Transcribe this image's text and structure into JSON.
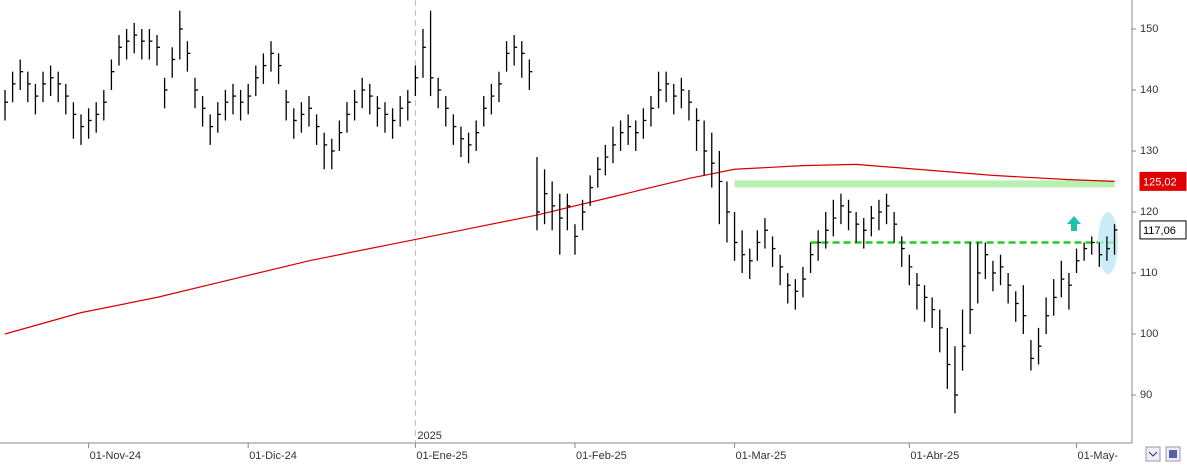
{
  "chart_data": {
    "type": "ohlc",
    "x": [
      0,
      1,
      2,
      3,
      4,
      5,
      6,
      7,
      8,
      9,
      10,
      11,
      12,
      13,
      14,
      15,
      16,
      17,
      18,
      19,
      20,
      21,
      22,
      23,
      24,
      25,
      26,
      27,
      28,
      29,
      30,
      31,
      32,
      33,
      34,
      35,
      36,
      37,
      38,
      39,
      40,
      41,
      42,
      43,
      44,
      45,
      46,
      47,
      48,
      49,
      50,
      51,
      52,
      53,
      54,
      55,
      56,
      57,
      58,
      59,
      60,
      61,
      62,
      63,
      64,
      65,
      66,
      67,
      68,
      69,
      70,
      71,
      72,
      73,
      74,
      75,
      76,
      77,
      78,
      79,
      80,
      81,
      82,
      83,
      84,
      85,
      86,
      87,
      88,
      89,
      90,
      91,
      92,
      93,
      94,
      95,
      96,
      97,
      98,
      99,
      100,
      101,
      102,
      103,
      104,
      105,
      106,
      107,
      108,
      109,
      110,
      111,
      112,
      113,
      114,
      115,
      116,
      117,
      118,
      119,
      120,
      121,
      122,
      123,
      124,
      125,
      126,
      127,
      128,
      129,
      130,
      131,
      132,
      133,
      134,
      135,
      136,
      137,
      138,
      139,
      140,
      141,
      142,
      143,
      144,
      145,
      146
    ],
    "series": [
      {
        "color": "#000000",
        "high": [
          140,
          143,
          145,
          143,
          141,
          143,
          144,
          143,
          141,
          138,
          136,
          137,
          138,
          140,
          145,
          149,
          150,
          151,
          150,
          150,
          149,
          142,
          147,
          153,
          148,
          142,
          139,
          136,
          138,
          140,
          141,
          140,
          141,
          144,
          146,
          148,
          146,
          140,
          137,
          138,
          139,
          136,
          133,
          132,
          135,
          138,
          140,
          142,
          141,
          139,
          138,
          137,
          139,
          140,
          144,
          150,
          153,
          142,
          139,
          136,
          134,
          133,
          135,
          139,
          141,
          143,
          148,
          149,
          148,
          145,
          129,
          127,
          125,
          123,
          123,
          118,
          122,
          126,
          129,
          131,
          134,
          135,
          136,
          135,
          137,
          139,
          143,
          143,
          141,
          142,
          140,
          137,
          135,
          133,
          130,
          125,
          120,
          117,
          114,
          117,
          119,
          116,
          113,
          110,
          109,
          111,
          115,
          117,
          120,
          122,
          123,
          122,
          120,
          119,
          121,
          122,
          123,
          120,
          116,
          113,
          110,
          108,
          106,
          104,
          101,
          98,
          104,
          115,
          115,
          115,
          112,
          113,
          110,
          107,
          108,
          99,
          101,
          106,
          109,
          112,
          110,
          114,
          115,
          116,
          115,
          116,
          118
        ],
        "low": [
          135,
          138,
          140,
          138,
          136,
          138,
          139,
          138,
          136,
          132,
          131,
          132,
          133,
          135,
          140,
          144,
          145,
          146,
          145,
          145,
          144,
          137,
          142,
          145,
          143,
          137,
          134,
          131,
          133,
          135,
          136,
          135,
          136,
          139,
          141,
          143,
          141,
          135,
          132,
          133,
          134,
          131,
          127,
          127,
          130,
          133,
          135,
          137,
          136,
          134,
          133,
          132,
          134,
          135,
          139,
          142,
          139,
          137,
          134,
          131,
          129,
          128,
          130,
          134,
          136,
          138,
          143,
          144,
          142,
          140,
          117,
          118,
          117,
          113,
          117,
          113,
          117,
          121,
          124,
          126,
          128,
          130,
          131,
          130,
          132,
          134,
          137,
          138,
          136,
          137,
          135,
          130,
          126,
          124,
          118,
          115,
          112,
          110,
          109,
          112,
          114,
          111,
          108,
          105,
          104,
          106,
          110,
          112,
          114,
          116,
          118,
          117,
          115,
          114,
          116,
          117,
          118,
          115,
          111,
          108,
          104,
          102,
          101,
          97,
          91,
          87,
          94,
          100,
          105,
          109,
          107,
          108,
          105,
          102,
          100,
          94,
          95,
          100,
          103,
          106,
          104,
          110,
          112,
          113,
          111,
          112,
          113
        ],
        "close": [
          138,
          141,
          143,
          141,
          139,
          141,
          142,
          141,
          139,
          136,
          134,
          135,
          136,
          138,
          143,
          147,
          148,
          149,
          148,
          148,
          147,
          140,
          145,
          150,
          146,
          140,
          137,
          134,
          136,
          138,
          139,
          138,
          139,
          142,
          144,
          146,
          144,
          138,
          135,
          136,
          137,
          134,
          131,
          130,
          133,
          136,
          138,
          140,
          139,
          137,
          136,
          135,
          137,
          138,
          142,
          147,
          142,
          140,
          137,
          134,
          132,
          131,
          133,
          137,
          139,
          141,
          146,
          147,
          146,
          143,
          120,
          123,
          121,
          119,
          121,
          116,
          120,
          124,
          127,
          129,
          131,
          133,
          134,
          133,
          135,
          137,
          140,
          141,
          139,
          140,
          138,
          135,
          130,
          128,
          125,
          120,
          115,
          113,
          112,
          115,
          117,
          114,
          111,
          108,
          107,
          109,
          113,
          115,
          117,
          119,
          121,
          120,
          118,
          117,
          119,
          120,
          121,
          118,
          114,
          111,
          108,
          106,
          104,
          101,
          95,
          90,
          98,
          104,
          110,
          113,
          110,
          111,
          108,
          105,
          103,
          96,
          98,
          103,
          106,
          109,
          108,
          112,
          114,
          115,
          113,
          114,
          117.06
        ]
      }
    ],
    "moving_average": {
      "color": "#d40000",
      "x": [
        0,
        10,
        20,
        30,
        40,
        50,
        60,
        70,
        80,
        90,
        96,
        105,
        112,
        120,
        130,
        140,
        146
      ],
      "values": [
        100,
        103.5,
        106,
        109,
        112,
        114.5,
        117,
        119.5,
        122.5,
        125.5,
        127,
        127.6,
        127.8,
        127,
        126,
        125.3,
        125.02
      ]
    },
    "price_labels": [
      {
        "value": 125.02,
        "label": "125,02",
        "color": "#e00000"
      },
      {
        "value": 117.06,
        "label": "117,06",
        "color": "#ffffff"
      }
    ],
    "levels": [
      {
        "value": 124.6,
        "from": 96,
        "to": 146,
        "color": "#b8f0b0"
      },
      {
        "value": 115,
        "from": 106,
        "to": 146,
        "color": "#22cc22"
      }
    ],
    "separator": {
      "x": 54,
      "label": "2025"
    },
    "xlim": [
      -0.66,
      148.3
    ],
    "ylim": [
      82.13,
      154.75
    ],
    "yticks": [
      90,
      100,
      110,
      120,
      130,
      140,
      150
    ],
    "xticks": [
      {
        "value": 11,
        "label": "01-Nov-24"
      },
      {
        "value": 32,
        "label": "01-Dic-24"
      },
      {
        "value": 54,
        "label": "01-Ene-25"
      },
      {
        "value": 75,
        "label": "01-Feb-25"
      },
      {
        "value": 96,
        "label": "01-Mar-25"
      },
      {
        "value": 119,
        "label": "01-Abr-25"
      },
      {
        "value": 141,
        "label": "01-May-"
      }
    ]
  }
}
